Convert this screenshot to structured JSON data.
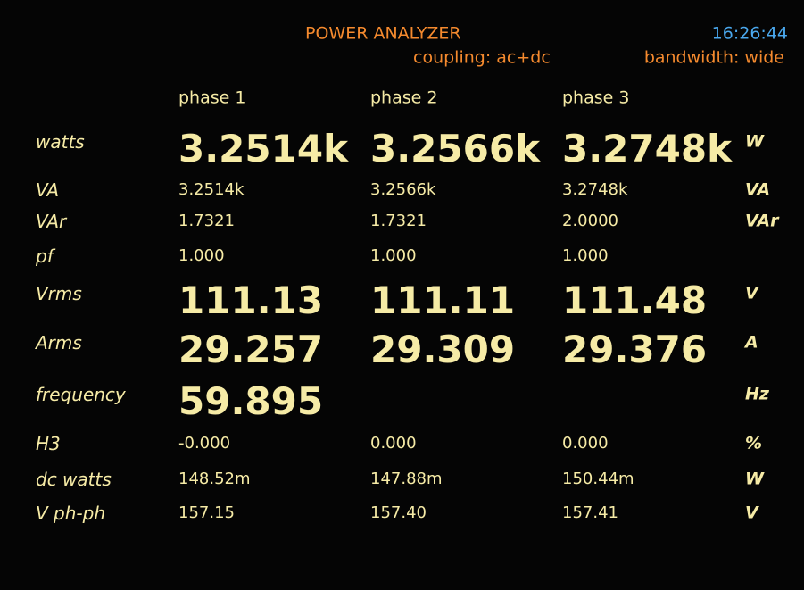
{
  "header": {
    "title": "POWER ANALYZER",
    "time": "16:26:44",
    "coupling": "coupling: ac+dc",
    "bandwidth": "bandwidth: wide"
  },
  "table": {
    "columns": [
      "phase 1",
      "phase 2",
      "phase 3"
    ],
    "rows": [
      {
        "label": "watts",
        "values": [
          "3.2514k",
          "3.2566k",
          "3.2748k"
        ],
        "unit": "W"
      },
      {
        "label": "VA",
        "values": [
          "3.2514k",
          "3.2566k",
          "3.2748k"
        ],
        "unit": "VA"
      },
      {
        "label": "VAr",
        "values": [
          "1.7321",
          "1.7321",
          "2.0000"
        ],
        "unit": "VAr"
      },
      {
        "label": "pf",
        "values": [
          "1.000",
          "1.000",
          "1.000"
        ]
      },
      {
        "label": "Vrms",
        "values": [
          "111.13",
          "111.11",
          "111.48"
        ],
        "unit": "V"
      },
      {
        "label": "Arms",
        "values": [
          "29.257",
          "29.309",
          "29.376"
        ],
        "unit": "A"
      },
      {
        "label": "frequency",
        "values": [
          "59.895"
        ],
        "unit": "Hz"
      },
      {
        "label": "H3",
        "values": [
          "-0.000",
          "0.000",
          "0.000"
        ],
        "unit": "%"
      },
      {
        "label": "dc watts",
        "values": [
          "148.52m",
          "147.88m",
          "150.44m"
        ],
        "unit": "W"
      },
      {
        "label": "V ph-ph",
        "values": [
          "157.15",
          "157.40",
          "157.41"
        ],
        "unit": "V"
      }
    ]
  }
}
